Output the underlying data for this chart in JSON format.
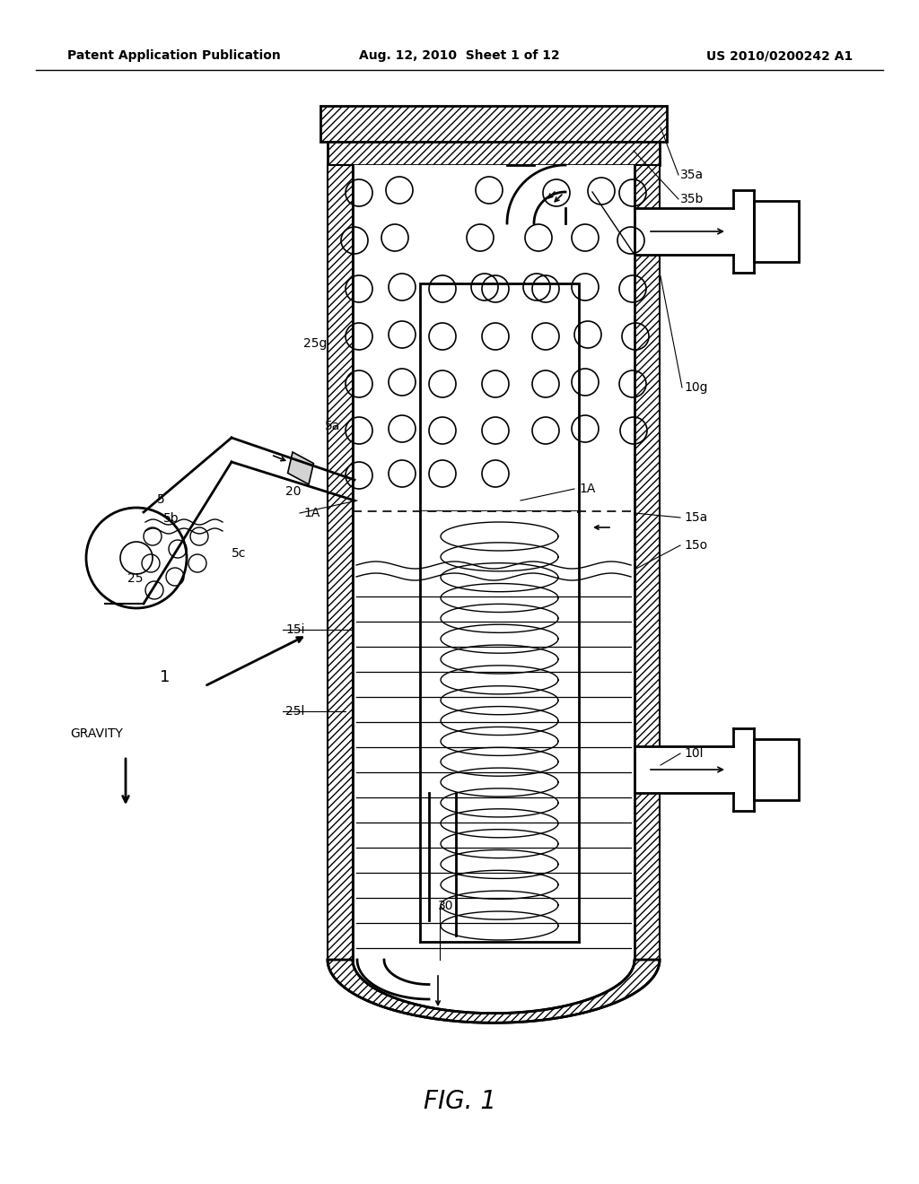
{
  "header_left": "Patent Application Publication",
  "header_mid": "Aug. 12, 2010  Sheet 1 of 12",
  "header_right": "US 2010/0200242 A1",
  "fig_label": "FIG. 1",
  "bg": "#ffffff",
  "lc": "#000000"
}
